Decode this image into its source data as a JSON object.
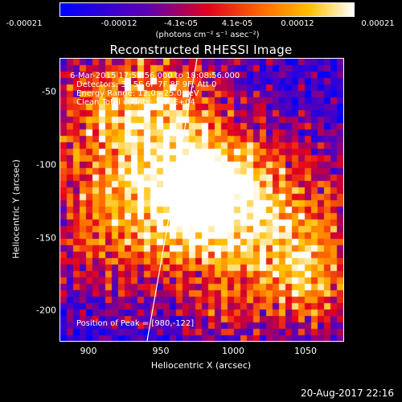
{
  "chart_data": {
    "type": "heatmap",
    "title": "Reconstructed RHESSI Image",
    "xlabel": "Heliocentric X (arcsec)",
    "ylabel": "Heliocentric Y (arcsec)",
    "xlim": [
      882,
      1072
    ],
    "ylim": [
      -222,
      -35
    ],
    "x_ticks": [
      "900",
      "950",
      "1000",
      "1050"
    ],
    "y_ticks": [
      "-50",
      "-100",
      "-150",
      "-200"
    ],
    "colorbar": {
      "ticks": [
        "-0.00021",
        "-0.00012",
        "-4.1e-05",
        "4.1e-05",
        "0.00012",
        "0.00021"
      ],
      "unit_label": "(photons cm⁻² s⁻¹ asec⁻²)",
      "range": [
        -0.00021,
        0.00021
      ],
      "colors": [
        "#0000ff",
        "#7000a0",
        "#ff2000",
        "#ffa000",
        "#ffffff"
      ]
    },
    "annotations": {
      "time_range": "6-Mar-2015 17:58:56.000 to 18:08:56.000",
      "detectors": "Detectors: 3F 5F 6F 7F 8F 9F, Att 0",
      "energy": "Energy Range: 12.0 - 25.0 keV",
      "method": "Clean     Total counts: 1.05E+04",
      "peak": "Position of Peak = [980,-122]"
    },
    "peak_position": [
      980,
      -122
    ]
  },
  "footer": {
    "timestamp": "20-Aug-2017 22:16"
  }
}
